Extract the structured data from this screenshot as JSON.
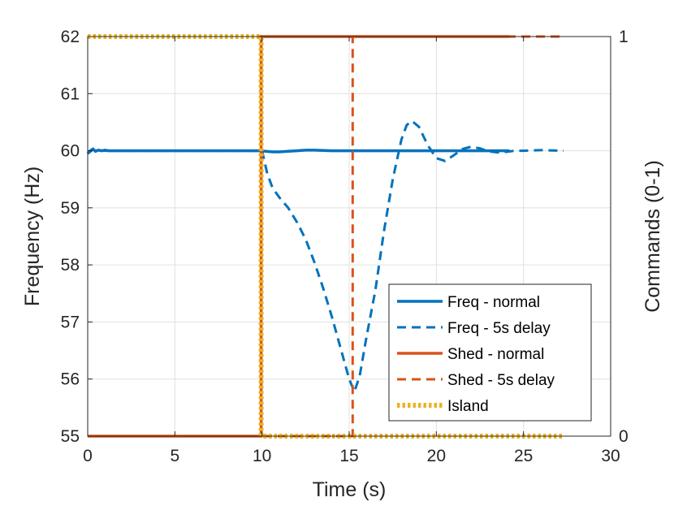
{
  "chart_data": {
    "type": "line",
    "xlabel": "Time (s)",
    "ylabel": "Frequency (Hz)",
    "y2label": "Commands (0-1)",
    "xlim": [
      0,
      30
    ],
    "ylim": [
      55,
      62
    ],
    "y2lim": [
      0,
      1
    ],
    "xticks": [
      0,
      5,
      10,
      15,
      20,
      25,
      30
    ],
    "yticks": [
      55,
      56,
      57,
      58,
      59,
      60,
      61,
      62
    ],
    "y2ticks": [
      0,
      1
    ],
    "grid": true,
    "legend_location": "bottom-right",
    "series": [
      {
        "name": "Freq - normal",
        "axis": "left",
        "color": "#0072BD",
        "style": "solid",
        "x": [
          0,
          0.15,
          0.3,
          0.45,
          0.6,
          0.8,
          1.0,
          1.2,
          1.5,
          2,
          5,
          9.9,
          10.2,
          10.6,
          11,
          11.5,
          12,
          12.5,
          13,
          14,
          15,
          16,
          20,
          24.2
        ],
        "y": [
          59.95,
          60.0,
          60.03,
          59.99,
          60.01,
          60.0,
          60.01,
          60.0,
          60.0,
          60.0,
          60.0,
          60.0,
          59.99,
          59.98,
          59.98,
          59.99,
          60.0,
          60.01,
          60.01,
          60.0,
          60.0,
          60.0,
          60.0,
          60.0
        ]
      },
      {
        "name": "Freq - 5s delay",
        "axis": "left",
        "color": "#0072BD",
        "style": "dashed",
        "x": [
          0,
          0.3,
          0.6,
          1,
          2,
          5,
          10,
          10.3,
          10.6,
          11,
          11.5,
          12,
          12.5,
          13,
          13.5,
          14,
          14.5,
          15,
          15.3,
          15.6,
          16,
          16.5,
          17,
          17.5,
          18,
          18.3,
          18.6,
          19,
          19.5,
          20,
          20.5,
          21,
          21.5,
          22,
          22.5,
          23,
          23.5,
          24,
          24.5,
          25,
          26,
          27.3
        ],
        "y": [
          59.95,
          60.02,
          60.0,
          60.0,
          60.0,
          60.0,
          60.0,
          59.6,
          59.35,
          59.18,
          59.0,
          58.75,
          58.45,
          58.05,
          57.6,
          57.1,
          56.55,
          56.0,
          55.78,
          56.05,
          56.75,
          57.55,
          58.6,
          59.5,
          60.2,
          60.45,
          60.52,
          60.42,
          60.1,
          59.87,
          59.82,
          59.92,
          60.03,
          60.07,
          60.04,
          59.99,
          59.97,
          59.98,
          60.0,
          60.0,
          60.01,
          60.0
        ]
      },
      {
        "name": "Shed - normal",
        "axis": "right",
        "color": "#D95319",
        "style": "solid",
        "x": [
          0,
          9.95,
          9.95,
          24.2
        ],
        "y": [
          0,
          0,
          1,
          1
        ]
      },
      {
        "name": "Shed - 5s delay",
        "axis": "right",
        "color": "#D95319",
        "style": "dashed",
        "x": [
          0,
          15.2,
          15.2,
          27.3
        ],
        "y": [
          0,
          0,
          1,
          1
        ]
      },
      {
        "name": "Island",
        "axis": "right",
        "color": "#EDB120",
        "style": "dotted",
        "x": [
          0,
          9.95,
          9.95,
          27.3
        ],
        "y": [
          1,
          1,
          0,
          0
        ]
      }
    ]
  }
}
